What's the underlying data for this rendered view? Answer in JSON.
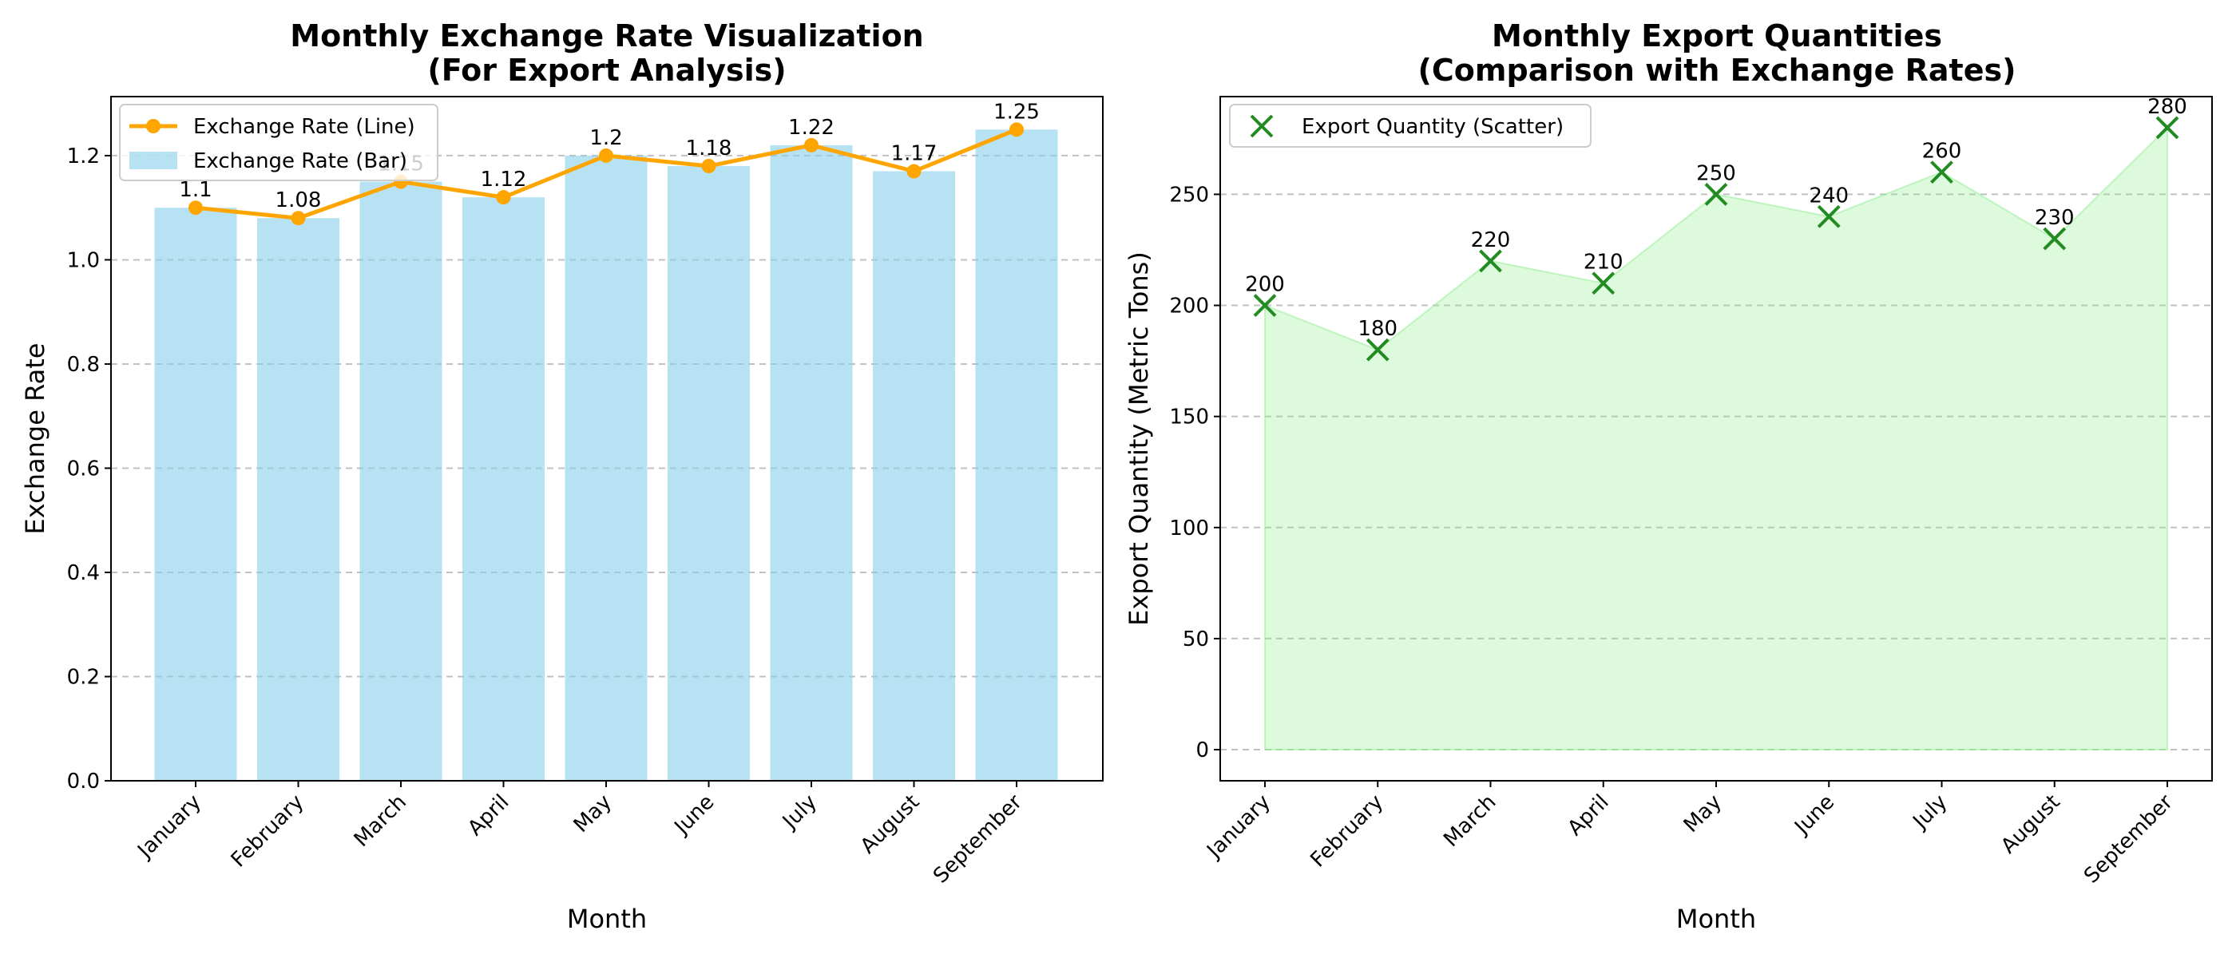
{
  "chart_data": [
    {
      "type": "bar",
      "title_line1": "Monthly Exchange Rate Visualization",
      "title_line2": "(For Export Analysis)",
      "xlabel": "Month",
      "ylabel": "Exchange Rate",
      "categories": [
        "January",
        "February",
        "March",
        "April",
        "May",
        "June",
        "July",
        "August",
        "September"
      ],
      "series": [
        {
          "name": "Exchange Rate (Line)",
          "kind": "line",
          "color": "#ffa500",
          "values": [
            1.1,
            1.08,
            1.15,
            1.12,
            1.2,
            1.18,
            1.22,
            1.17,
            1.25
          ],
          "data_labels": [
            "1.1",
            "1.08",
            "1.15",
            "1.12",
            "1.2",
            "1.18",
            "1.22",
            "1.17",
            "1.25"
          ]
        },
        {
          "name": "Exchange Rate (Bar)",
          "kind": "bar",
          "color": "#87ceeb",
          "values": [
            1.1,
            1.08,
            1.15,
            1.12,
            1.2,
            1.18,
            1.22,
            1.17,
            1.25
          ]
        }
      ],
      "ylim": [
        0,
        1.3133
      ],
      "yticks": [
        "0.0",
        "0.2",
        "0.4",
        "0.6",
        "0.8",
        "1.0",
        "1.2"
      ],
      "ytick_values": [
        0,
        0.2,
        0.4,
        0.6,
        0.8,
        1.0,
        1.2
      ],
      "grid": "y-dashed",
      "legend_position": "upper-left"
    },
    {
      "type": "scatter",
      "title_line1": "Monthly Export Quantities",
      "title_line2": "(Comparison with Exchange Rates)",
      "xlabel": "Month",
      "ylabel": "Export Quantity (Metric Tons)",
      "categories": [
        "January",
        "February",
        "March",
        "April",
        "May",
        "June",
        "July",
        "August",
        "September"
      ],
      "series": [
        {
          "name": "Export Quantity (Scatter)",
          "kind": "scatter",
          "marker": "x",
          "color": "#228b22",
          "fill_color": "#90ee90",
          "values": [
            200,
            180,
            220,
            210,
            250,
            240,
            260,
            230,
            280
          ],
          "data_labels": [
            "200",
            "180",
            "220",
            "210",
            "250",
            "240",
            "260",
            "230",
            "280"
          ]
        }
      ],
      "ylim": [
        -14,
        294
      ],
      "yticks": [
        "0",
        "50",
        "100",
        "150",
        "200",
        "250"
      ],
      "ytick_values": [
        0,
        50,
        100,
        150,
        200,
        250
      ],
      "grid": "y-dashed",
      "legend_position": "upper-left"
    }
  ]
}
